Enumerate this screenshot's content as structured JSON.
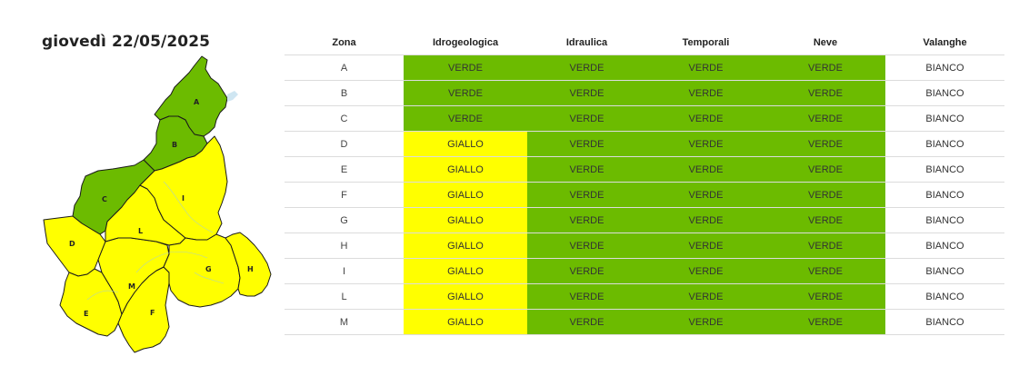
{
  "header": {
    "date": "giovedì 22/05/2025"
  },
  "colors": {
    "verde": "#6cbb00",
    "giallo": "#ffff00",
    "bianco": "#ffffff",
    "water": "#cfe6f2"
  },
  "map": {
    "zones": [
      {
        "id": "A",
        "label": "A",
        "level": "verde"
      },
      {
        "id": "B",
        "label": "B",
        "level": "verde"
      },
      {
        "id": "C",
        "label": "C",
        "level": "verde"
      },
      {
        "id": "D",
        "label": "D",
        "level": "giallo"
      },
      {
        "id": "E",
        "label": "E",
        "level": "giallo"
      },
      {
        "id": "F",
        "label": "F",
        "level": "giallo"
      },
      {
        "id": "G",
        "label": "G",
        "level": "giallo"
      },
      {
        "id": "H",
        "label": "H",
        "level": "giallo"
      },
      {
        "id": "I",
        "label": "I",
        "level": "giallo"
      },
      {
        "id": "L",
        "label": "L",
        "level": "giallo"
      },
      {
        "id": "M",
        "label": "M",
        "level": "giallo"
      }
    ]
  },
  "table": {
    "columns": [
      "Zona",
      "Idrogeologica",
      "Idraulica",
      "Temporali",
      "Neve",
      "Valanghe"
    ],
    "rows": [
      {
        "zona": "A",
        "cells": [
          "VERDE",
          "VERDE",
          "VERDE",
          "VERDE",
          "BIANCO"
        ]
      },
      {
        "zona": "B",
        "cells": [
          "VERDE",
          "VERDE",
          "VERDE",
          "VERDE",
          "BIANCO"
        ]
      },
      {
        "zona": "C",
        "cells": [
          "VERDE",
          "VERDE",
          "VERDE",
          "VERDE",
          "BIANCO"
        ]
      },
      {
        "zona": "D",
        "cells": [
          "GIALLO",
          "VERDE",
          "VERDE",
          "VERDE",
          "BIANCO"
        ]
      },
      {
        "zona": "E",
        "cells": [
          "GIALLO",
          "VERDE",
          "VERDE",
          "VERDE",
          "BIANCO"
        ]
      },
      {
        "zona": "F",
        "cells": [
          "GIALLO",
          "VERDE",
          "VERDE",
          "VERDE",
          "BIANCO"
        ]
      },
      {
        "zona": "G",
        "cells": [
          "GIALLO",
          "VERDE",
          "VERDE",
          "VERDE",
          "BIANCO"
        ]
      },
      {
        "zona": "H",
        "cells": [
          "GIALLO",
          "VERDE",
          "VERDE",
          "VERDE",
          "BIANCO"
        ]
      },
      {
        "zona": "I",
        "cells": [
          "GIALLO",
          "VERDE",
          "VERDE",
          "VERDE",
          "BIANCO"
        ]
      },
      {
        "zona": "L",
        "cells": [
          "GIALLO",
          "VERDE",
          "VERDE",
          "VERDE",
          "BIANCO"
        ]
      },
      {
        "zona": "M",
        "cells": [
          "GIALLO",
          "VERDE",
          "VERDE",
          "VERDE",
          "BIANCO"
        ]
      }
    ]
  }
}
